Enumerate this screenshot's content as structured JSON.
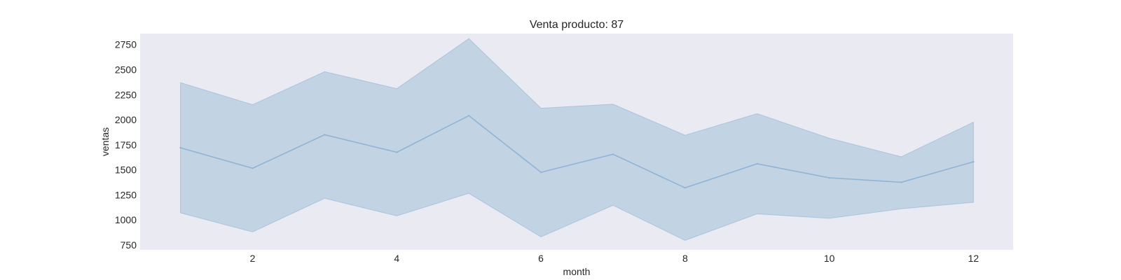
{
  "chart_data": {
    "type": "line",
    "title": "Venta producto: 87",
    "xlabel": "month",
    "ylabel": "ventas",
    "x": [
      1,
      2,
      3,
      4,
      5,
      6,
      7,
      8,
      9,
      10,
      11,
      12
    ],
    "series": [
      {
        "values": [
          1720,
          1515,
          1850,
          1675,
          2040,
          1475,
          1655,
          1320,
          1560,
          1420,
          1375,
          1580
        ],
        "band_lower": [
          1070,
          880,
          1215,
          1040,
          1265,
          830,
          1145,
          795,
          1060,
          1015,
          1110,
          1175
        ],
        "band_upper": [
          2370,
          2150,
          2480,
          2310,
          2810,
          2115,
          2155,
          1845,
          2060,
          1815,
          1630,
          1975
        ]
      }
    ],
    "xlim": [
      0.44,
      12.55
    ],
    "ylim": [
      700,
      2860
    ],
    "xticks": [
      2,
      4,
      6,
      8,
      10,
      12
    ],
    "yticks": [
      750,
      1000,
      1250,
      1500,
      1750,
      2000,
      2250,
      2500,
      2750
    ],
    "grid": false,
    "colors": {
      "background": "#eaeaf2",
      "line": "#8fb4d6",
      "band": "#c2d3e3"
    }
  }
}
